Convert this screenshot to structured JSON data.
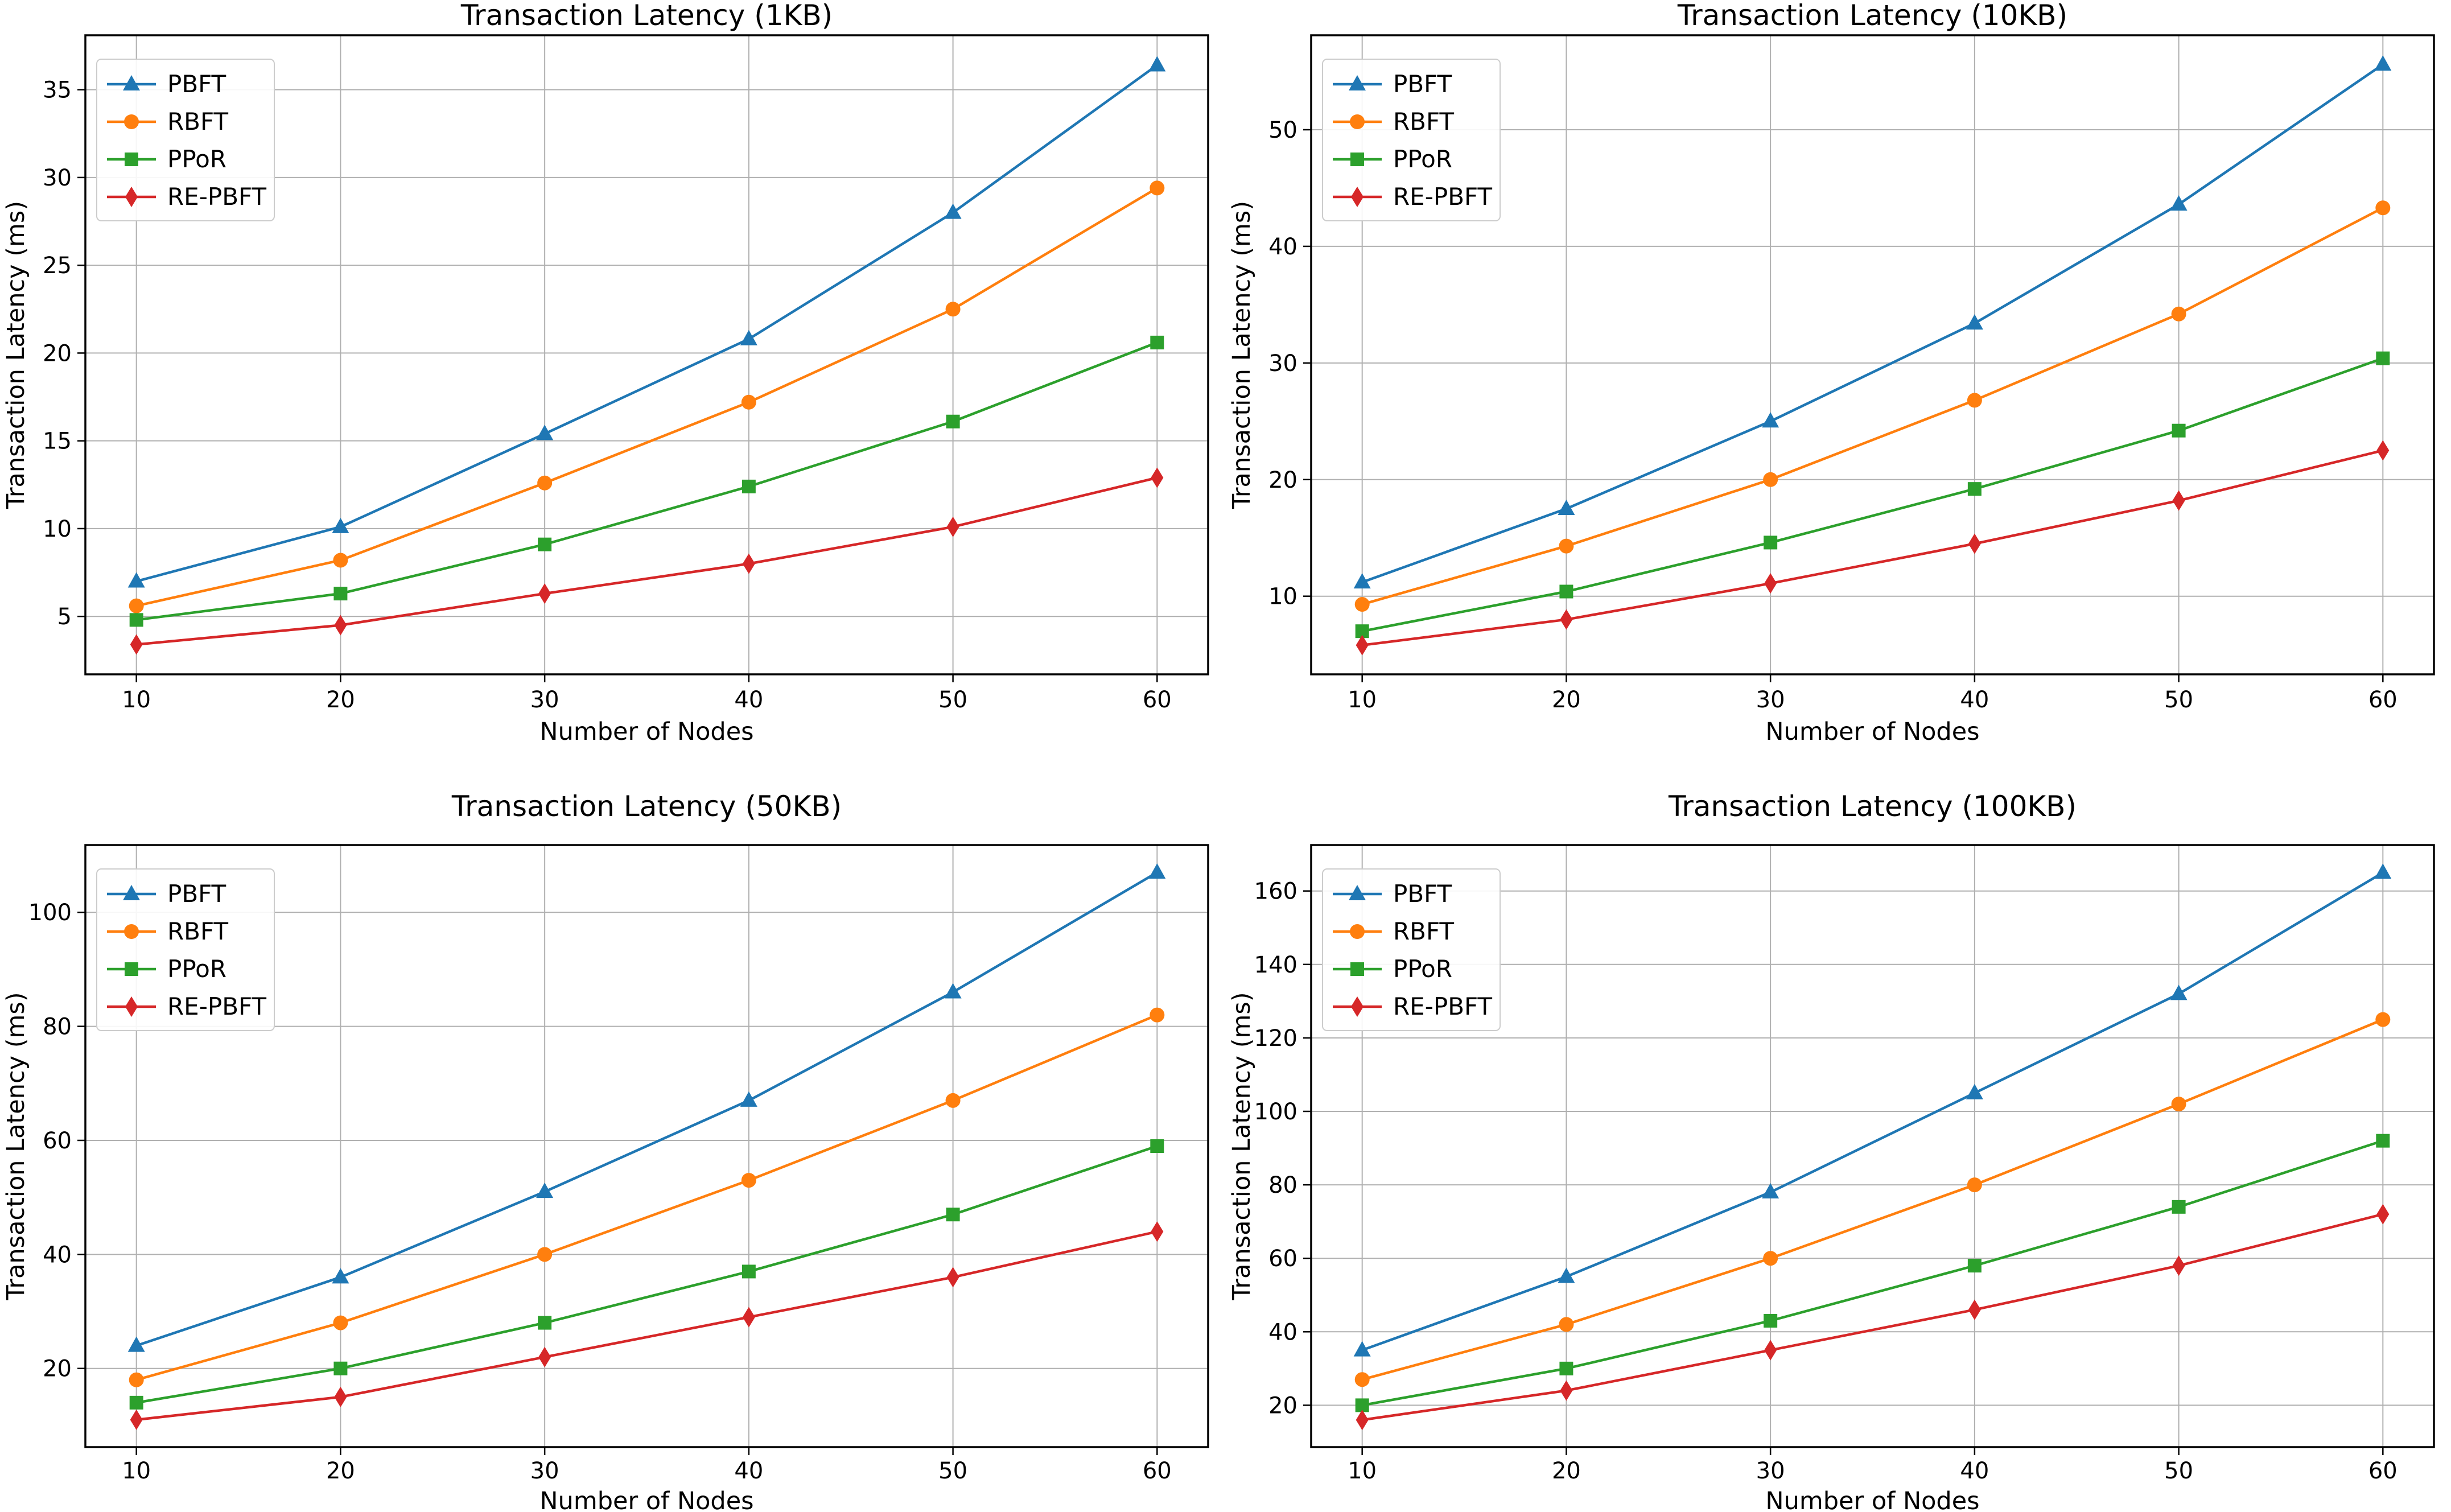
{
  "figure": {
    "background": "#ffffff",
    "grid_color": "#b0b0b0",
    "axis_color": "#000000",
    "legend_border_color": "#cccccc",
    "legend_background": "#ffffff"
  },
  "chart_data": [
    {
      "type": "line",
      "title": "Transaction Latency (1KB)",
      "xlabel": "Number of Nodes",
      "ylabel": "Transaction Latency (ms)",
      "x": [
        10,
        20,
        30,
        40,
        50,
        60
      ],
      "x_ticks": [
        10,
        20,
        30,
        40,
        50,
        60
      ],
      "y_ticks": [
        5,
        10,
        15,
        20,
        25,
        30,
        35
      ],
      "xlim": [
        7.5,
        62.5
      ],
      "ylim": [
        1.7,
        38.1
      ],
      "grid": true,
      "legend_position": "upper-left",
      "series": [
        {
          "name": "PBFT",
          "color": "#1f77b4",
          "marker": "triangle-up",
          "values": [
            7.0,
            10.1,
            15.4,
            20.8,
            28.0,
            36.4
          ]
        },
        {
          "name": "RBFT",
          "color": "#ff7f0e",
          "marker": "circle",
          "values": [
            5.6,
            8.2,
            12.6,
            17.2,
            22.5,
            29.4
          ]
        },
        {
          "name": "PPoR",
          "color": "#2ca02c",
          "marker": "square",
          "values": [
            4.8,
            6.3,
            9.1,
            12.4,
            16.1,
            20.6
          ]
        },
        {
          "name": "RE-PBFT",
          "color": "#d62728",
          "marker": "diamond",
          "values": [
            3.4,
            4.5,
            6.3,
            8.0,
            10.1,
            12.9
          ]
        }
      ]
    },
    {
      "type": "line",
      "title": "Transaction Latency (10KB)",
      "xlabel": "Number of Nodes",
      "ylabel": "Transaction Latency (ms)",
      "x": [
        10,
        20,
        30,
        40,
        50,
        60
      ],
      "x_ticks": [
        10,
        20,
        30,
        40,
        50,
        60
      ],
      "y_ticks": [
        10,
        20,
        30,
        40,
        50
      ],
      "xlim": [
        7.5,
        62.5
      ],
      "ylim": [
        3.3,
        58.1
      ],
      "grid": true,
      "legend_position": "upper-left",
      "series": [
        {
          "name": "PBFT",
          "color": "#1f77b4",
          "marker": "triangle-up",
          "values": [
            11.2,
            17.5,
            25.0,
            33.4,
            43.6,
            55.6
          ]
        },
        {
          "name": "RBFT",
          "color": "#ff7f0e",
          "marker": "circle",
          "values": [
            9.3,
            14.3,
            20.0,
            26.8,
            34.2,
            43.3
          ]
        },
        {
          "name": "PPoR",
          "color": "#2ca02c",
          "marker": "square",
          "values": [
            7.0,
            10.4,
            14.6,
            19.2,
            24.2,
            30.4
          ]
        },
        {
          "name": "RE-PBFT",
          "color": "#d62728",
          "marker": "diamond",
          "values": [
            5.8,
            8.0,
            11.1,
            14.5,
            18.2,
            22.5
          ]
        }
      ]
    },
    {
      "type": "line",
      "title": "Transaction Latency (50KB)",
      "xlabel": "Number of Nodes",
      "ylabel": "Transaction Latency (ms)",
      "x": [
        10,
        20,
        30,
        40,
        50,
        60
      ],
      "x_ticks": [
        10,
        20,
        30,
        40,
        50,
        60
      ],
      "y_ticks": [
        20,
        40,
        60,
        80,
        100
      ],
      "xlim": [
        7.5,
        62.5
      ],
      "ylim": [
        6.2,
        111.8
      ],
      "grid": true,
      "legend_position": "upper-left",
      "series": [
        {
          "name": "PBFT",
          "color": "#1f77b4",
          "marker": "triangle-up",
          "values": [
            24,
            36,
            51,
            67,
            86,
            107
          ]
        },
        {
          "name": "RBFT",
          "color": "#ff7f0e",
          "marker": "circle",
          "values": [
            18,
            28,
            40,
            53,
            67,
            82
          ]
        },
        {
          "name": "PPoR",
          "color": "#2ca02c",
          "marker": "square",
          "values": [
            14,
            20,
            28,
            37,
            47,
            59
          ]
        },
        {
          "name": "RE-PBFT",
          "color": "#d62728",
          "marker": "diamond",
          "values": [
            11,
            15,
            22,
            29,
            36,
            44
          ]
        }
      ]
    },
    {
      "type": "line",
      "title": "Transaction Latency (100KB)",
      "xlabel": "Number of Nodes",
      "ylabel": "Transaction Latency (ms)",
      "x": [
        10,
        20,
        30,
        40,
        50,
        60
      ],
      "x_ticks": [
        10,
        20,
        30,
        40,
        50,
        60
      ],
      "y_ticks": [
        20,
        40,
        60,
        80,
        100,
        120,
        140,
        160
      ],
      "xlim": [
        7.5,
        62.5
      ],
      "ylim": [
        8.6,
        172.5
      ],
      "grid": true,
      "legend_position": "upper-left",
      "series": [
        {
          "name": "PBFT",
          "color": "#1f77b4",
          "marker": "triangle-up",
          "values": [
            35,
            55,
            78,
            105,
            132,
            165
          ]
        },
        {
          "name": "RBFT",
          "color": "#ff7f0e",
          "marker": "circle",
          "values": [
            27,
            42,
            60,
            80,
            102,
            125
          ]
        },
        {
          "name": "PPoR",
          "color": "#2ca02c",
          "marker": "square",
          "values": [
            20,
            30,
            43,
            58,
            74,
            92
          ]
        },
        {
          "name": "RE-PBFT",
          "color": "#d62728",
          "marker": "diamond",
          "values": [
            16,
            24,
            35,
            46,
            58,
            72
          ]
        }
      ]
    }
  ]
}
